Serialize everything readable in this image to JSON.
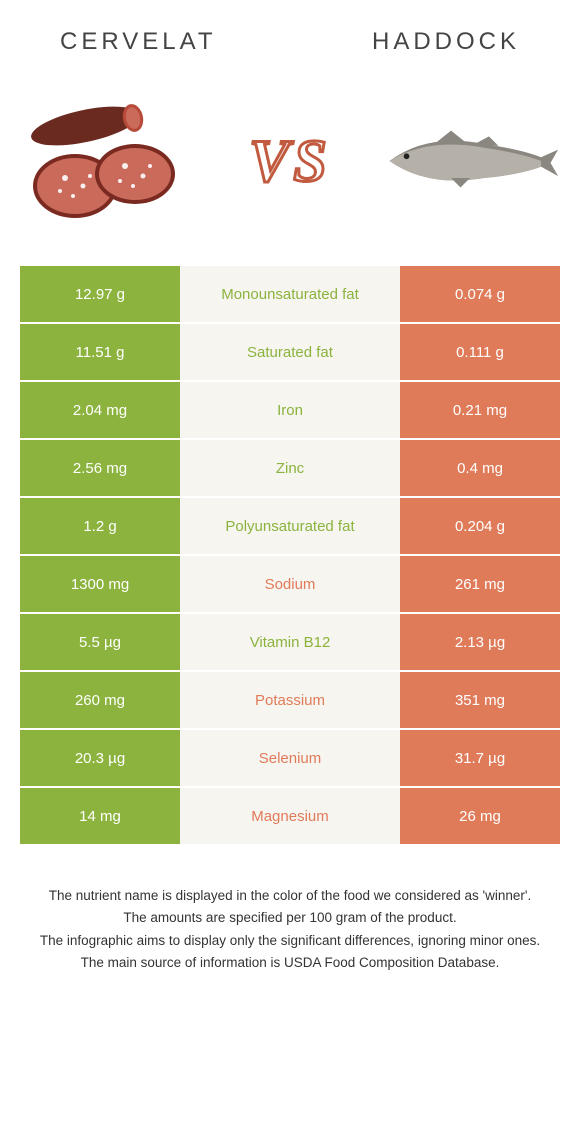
{
  "header": {
    "left_title": "Cervelat",
    "right_title": "Haddock"
  },
  "vs_label": "VS",
  "colors": {
    "green": "#8bb33d",
    "orange": "#e07b5a",
    "row_bg": "#f7f5f0",
    "white": "#ffffff"
  },
  "rows": [
    {
      "left": "12.97 g",
      "label": "Monounsaturated fat",
      "right": "0.074 g",
      "winner": "left"
    },
    {
      "left": "11.51 g",
      "label": "Saturated fat",
      "right": "0.111 g",
      "winner": "left"
    },
    {
      "left": "2.04 mg",
      "label": "Iron",
      "right": "0.21 mg",
      "winner": "left"
    },
    {
      "left": "2.56 mg",
      "label": "Zinc",
      "right": "0.4 mg",
      "winner": "left"
    },
    {
      "left": "1.2 g",
      "label": "Polyunsaturated fat",
      "right": "0.204 g",
      "winner": "left"
    },
    {
      "left": "1300 mg",
      "label": "Sodium",
      "right": "261 mg",
      "winner": "right"
    },
    {
      "left": "5.5 µg",
      "label": "Vitamin B12",
      "right": "2.13 µg",
      "winner": "left"
    },
    {
      "left": "260 mg",
      "label": "Potassium",
      "right": "351 mg",
      "winner": "right"
    },
    {
      "left": "20.3 µg",
      "label": "Selenium",
      "right": "31.7 µg",
      "winner": "right"
    },
    {
      "left": "14 mg",
      "label": "Magnesium",
      "right": "26 mg",
      "winner": "right"
    }
  ],
  "footnotes": [
    "The nutrient name is displayed in the color of the food we considered as 'winner'.",
    "The amounts are specified per 100 gram of the product.",
    "The infographic aims to display only the significant differences, ignoring minor ones.",
    "The main source of information is USDA Food Composition Database."
  ]
}
